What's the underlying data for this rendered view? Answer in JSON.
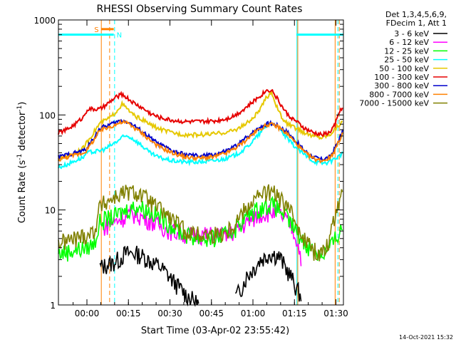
{
  "chart_data": {
    "type": "line",
    "title": "RHESSI Observing Summary Count Rates",
    "xlabel": "Start Time (03-Apr-02 23:55:42)",
    "ylabel_main": "Count Rate (s",
    "ylabel_sup1": "-1",
    "ylabel_mid": " detector",
    "ylabel_sup2": "-1",
    "ylabel_end": ")",
    "x_unit": "minutes after 23:55:42",
    "xlim": [
      -6,
      97
    ],
    "ylim": [
      1,
      1000
    ],
    "y_scale": "log",
    "x_ticks": [
      {
        "label": "00:00",
        "value": 4.3
      },
      {
        "label": "00:15",
        "value": 19.3
      },
      {
        "label": "00:30",
        "value": 34.3
      },
      {
        "label": "00:45",
        "value": 49.3
      },
      {
        "label": "01:00",
        "value": 64.3
      },
      {
        "label": "01:15",
        "value": 79.3
      },
      {
        "label": "01:30",
        "value": 94.3
      }
    ],
    "y_ticks": [
      {
        "label": "1",
        "value": 1
      },
      {
        "label": "10",
        "value": 10
      },
      {
        "label": "100",
        "value": 100
      },
      {
        "label": "1000",
        "value": 1000
      }
    ],
    "legend_header": [
      "Det 1,3,4,5,6,9,",
      "FDecim 1, Att 1"
    ],
    "legend_placement": "right",
    "timestamp": "14-Oct-2021 15:32",
    "series": [
      {
        "name": "3 - 6 keV",
        "color": "#000000",
        "x": [
          -6,
          8,
          9,
          14,
          15,
          16,
          18,
          20,
          22,
          25,
          28,
          31,
          34,
          37,
          40,
          45,
          50,
          55,
          58,
          60,
          62,
          65,
          67,
          69,
          70,
          72,
          74,
          75,
          76,
          78,
          80,
          82,
          83,
          97
        ],
        "y": [
          null,
          null,
          2.5,
          2.8,
          3.0,
          3.0,
          3.5,
          3.5,
          3.5,
          3.2,
          2.8,
          2.5,
          2.0,
          1.6,
          1.3,
          1.0,
          null,
          null,
          1.2,
          1.5,
          2.0,
          2.5,
          3.0,
          3.2,
          3.5,
          3.4,
          3.2,
          2.8,
          2.5,
          2.0,
          1.5,
          1.2,
          null,
          null
        ]
      },
      {
        "name": "6 - 12 keV",
        "color": "#ff00ff",
        "x": [
          8,
          10,
          12,
          14,
          16,
          18,
          20,
          22,
          24,
          26,
          28,
          30,
          35,
          40,
          45,
          50,
          55,
          58,
          61,
          64,
          67,
          70,
          72,
          74,
          76,
          78,
          80,
          82,
          84
        ],
        "y": [
          null,
          6.5,
          7.0,
          7.5,
          8.0,
          8.5,
          9.0,
          9.0,
          8.5,
          8.0,
          7.5,
          7.0,
          6.0,
          5.5,
          5.5,
          5.5,
          5.5,
          6.0,
          7.0,
          8.0,
          9.0,
          9.5,
          9.5,
          9.0,
          8.0,
          7.0,
          5.0,
          3.0,
          null
        ]
      },
      {
        "name": "12 - 25 keV",
        "color": "#00ff00",
        "x": [
          -6,
          0,
          4,
          7,
          9,
          11,
          14,
          17,
          20,
          23,
          26,
          29,
          32,
          36,
          40,
          45,
          50,
          55,
          58,
          61,
          64,
          67,
          70,
          72,
          74,
          77,
          80,
          83,
          86,
          88,
          90,
          92,
          95,
          97
        ],
        "y": [
          3.5,
          3.8,
          4.0,
          4.5,
          7.5,
          8.0,
          8.5,
          9.5,
          10.5,
          11.0,
          10.0,
          9.0,
          8.0,
          6.5,
          5.5,
          5.0,
          5.0,
          5.5,
          6.5,
          8.0,
          9.5,
          10.5,
          11.5,
          11.0,
          10.0,
          8.0,
          6.0,
          4.5,
          3.8,
          3.5,
          3.5,
          4.0,
          5.5,
          7.0
        ]
      },
      {
        "name": "25 - 50 keV",
        "color": "#00ffff",
        "x": [
          -6,
          -3,
          0,
          3,
          4.4,
          9,
          11,
          13,
          15,
          17,
          19,
          21,
          24,
          27,
          30,
          35,
          40,
          45,
          50,
          55,
          58,
          61,
          64,
          67,
          70,
          72,
          74,
          77,
          80,
          83,
          86,
          89,
          92,
          94,
          96,
          97
        ],
        "y": [
          28,
          30,
          33,
          36,
          40,
          42,
          44,
          48,
          52,
          58,
          60,
          56,
          48,
          40,
          36,
          33,
          32,
          32,
          33,
          35,
          38,
          43,
          52,
          65,
          80,
          82,
          70,
          55,
          45,
          38,
          33,
          31,
          32,
          35,
          38,
          40
        ]
      },
      {
        "name": "50 - 100 keV",
        "color": "#e6c800",
        "x": [
          -6,
          -3,
          0,
          3,
          4.4,
          9,
          11,
          13,
          15,
          17,
          19,
          21,
          24,
          27,
          30,
          35,
          40,
          45,
          50,
          55,
          58,
          61,
          64,
          67,
          69,
          71,
          73,
          75,
          77,
          80,
          83,
          86,
          89,
          92,
          94,
          96,
          97
        ],
        "y": [
          34,
          37,
          40,
          45,
          52,
          82,
          88,
          95,
          110,
          130,
          115,
          100,
          90,
          80,
          72,
          65,
          62,
          62,
          63,
          66,
          70,
          78,
          90,
          115,
          150,
          175,
          120,
          90,
          80,
          72,
          65,
          60,
          58,
          62,
          72,
          82,
          85
        ]
      },
      {
        "name": "100 - 300 keV",
        "color": "#e60000",
        "x": [
          -6,
          -3,
          0,
          3,
          4.4,
          9,
          11,
          13,
          15,
          17,
          19,
          21,
          24,
          27,
          30,
          35,
          40,
          45,
          50,
          55,
          58,
          61,
          64,
          67,
          69,
          71,
          73,
          75,
          77,
          80,
          83,
          86,
          89,
          92,
          94,
          96,
          97
        ],
        "y": [
          65,
          70,
          80,
          95,
          115,
          115,
          125,
          140,
          155,
          165,
          150,
          135,
          120,
          105,
          95,
          88,
          85,
          85,
          86,
          92,
          100,
          115,
          135,
          160,
          180,
          185,
          150,
          120,
          100,
          85,
          72,
          65,
          62,
          65,
          80,
          115,
          125
        ]
      },
      {
        "name": "300 - 800 keV",
        "color": "#0000cc",
        "x": [
          -6,
          -3,
          0,
          3,
          4.4,
          9,
          11,
          13,
          15,
          17,
          19,
          21,
          24,
          27,
          30,
          35,
          40,
          45,
          50,
          55,
          58,
          61,
          64,
          67,
          70,
          72,
          74,
          77,
          80,
          83,
          86,
          89,
          92,
          94,
          96,
          97
        ],
        "y": [
          36,
          38,
          40,
          42,
          45,
          72,
          76,
          80,
          84,
          88,
          85,
          78,
          68,
          58,
          50,
          42,
          38,
          37,
          38,
          42,
          47,
          55,
          65,
          75,
          82,
          80,
          75,
          65,
          52,
          42,
          36,
          34,
          36,
          45,
          60,
          70
        ]
      },
      {
        "name": "800 - 7000 keV",
        "color": "#ff8000",
        "x": [
          -6,
          -3,
          0,
          3,
          4.4,
          9,
          11,
          13,
          15,
          17,
          19,
          21,
          24,
          27,
          30,
          35,
          40,
          45,
          50,
          55,
          58,
          61,
          64,
          67,
          70,
          72,
          74,
          77,
          80,
          83,
          86,
          89,
          92,
          94,
          96,
          97
        ],
        "y": [
          34,
          36,
          38,
          40,
          43,
          68,
          72,
          76,
          80,
          84,
          82,
          75,
          65,
          55,
          47,
          40,
          36,
          35,
          36,
          40,
          45,
          52,
          62,
          72,
          80,
          78,
          73,
          62,
          50,
          40,
          35,
          33,
          35,
          43,
          58,
          68
        ]
      },
      {
        "name": "7000 - 15000 keV",
        "color": "#808000",
        "x": [
          -6,
          0,
          4,
          7,
          9,
          11,
          14,
          17,
          20,
          23,
          26,
          29,
          32,
          36,
          40,
          45,
          50,
          55,
          58,
          61,
          64,
          67,
          70,
          72,
          74,
          77,
          80,
          83,
          86,
          88,
          90,
          92,
          95,
          97
        ],
        "y": [
          4.5,
          5.0,
          5.5,
          6.0,
          11.0,
          12.0,
          13.5,
          15.0,
          15.5,
          15.0,
          13.0,
          11.0,
          9.5,
          7.5,
          6.0,
          5.5,
          5.5,
          6.0,
          7.5,
          10.0,
          12.5,
          14.5,
          15.5,
          15.0,
          13.0,
          10.5,
          7.5,
          5.0,
          3.8,
          3.5,
          3.8,
          5.0,
          12.0,
          18.0
        ]
      }
    ],
    "annotations": [
      {
        "label": "S",
        "color": "#ff8000",
        "bar_x": [
          9.5,
          14
        ],
        "y": 800
      },
      {
        "label": "N",
        "color": "#00ffff",
        "bar_x": [
          -6,
          14
        ],
        "bar_x2": [
          80,
          97
        ],
        "y": 700
      }
    ],
    "vertical_lines": [
      {
        "x": 9.5,
        "color": "#ff8000",
        "style": "solid"
      },
      {
        "x": 12.5,
        "color": "#ff8000",
        "style": "dashed"
      },
      {
        "x": 14.3,
        "color": "#00ffff",
        "style": "dashed"
      },
      {
        "x": 80.2,
        "color": "#00ffff",
        "style": "solid"
      },
      {
        "x": 80.5,
        "color": "#ff8000",
        "style": "solid"
      },
      {
        "x": 94.0,
        "color": "#ff8000",
        "style": "solid"
      },
      {
        "x": 95.0,
        "color": "#00ffff",
        "style": "dashed"
      },
      {
        "x": 95.5,
        "color": "#ff8000",
        "style": "dashed"
      }
    ]
  }
}
